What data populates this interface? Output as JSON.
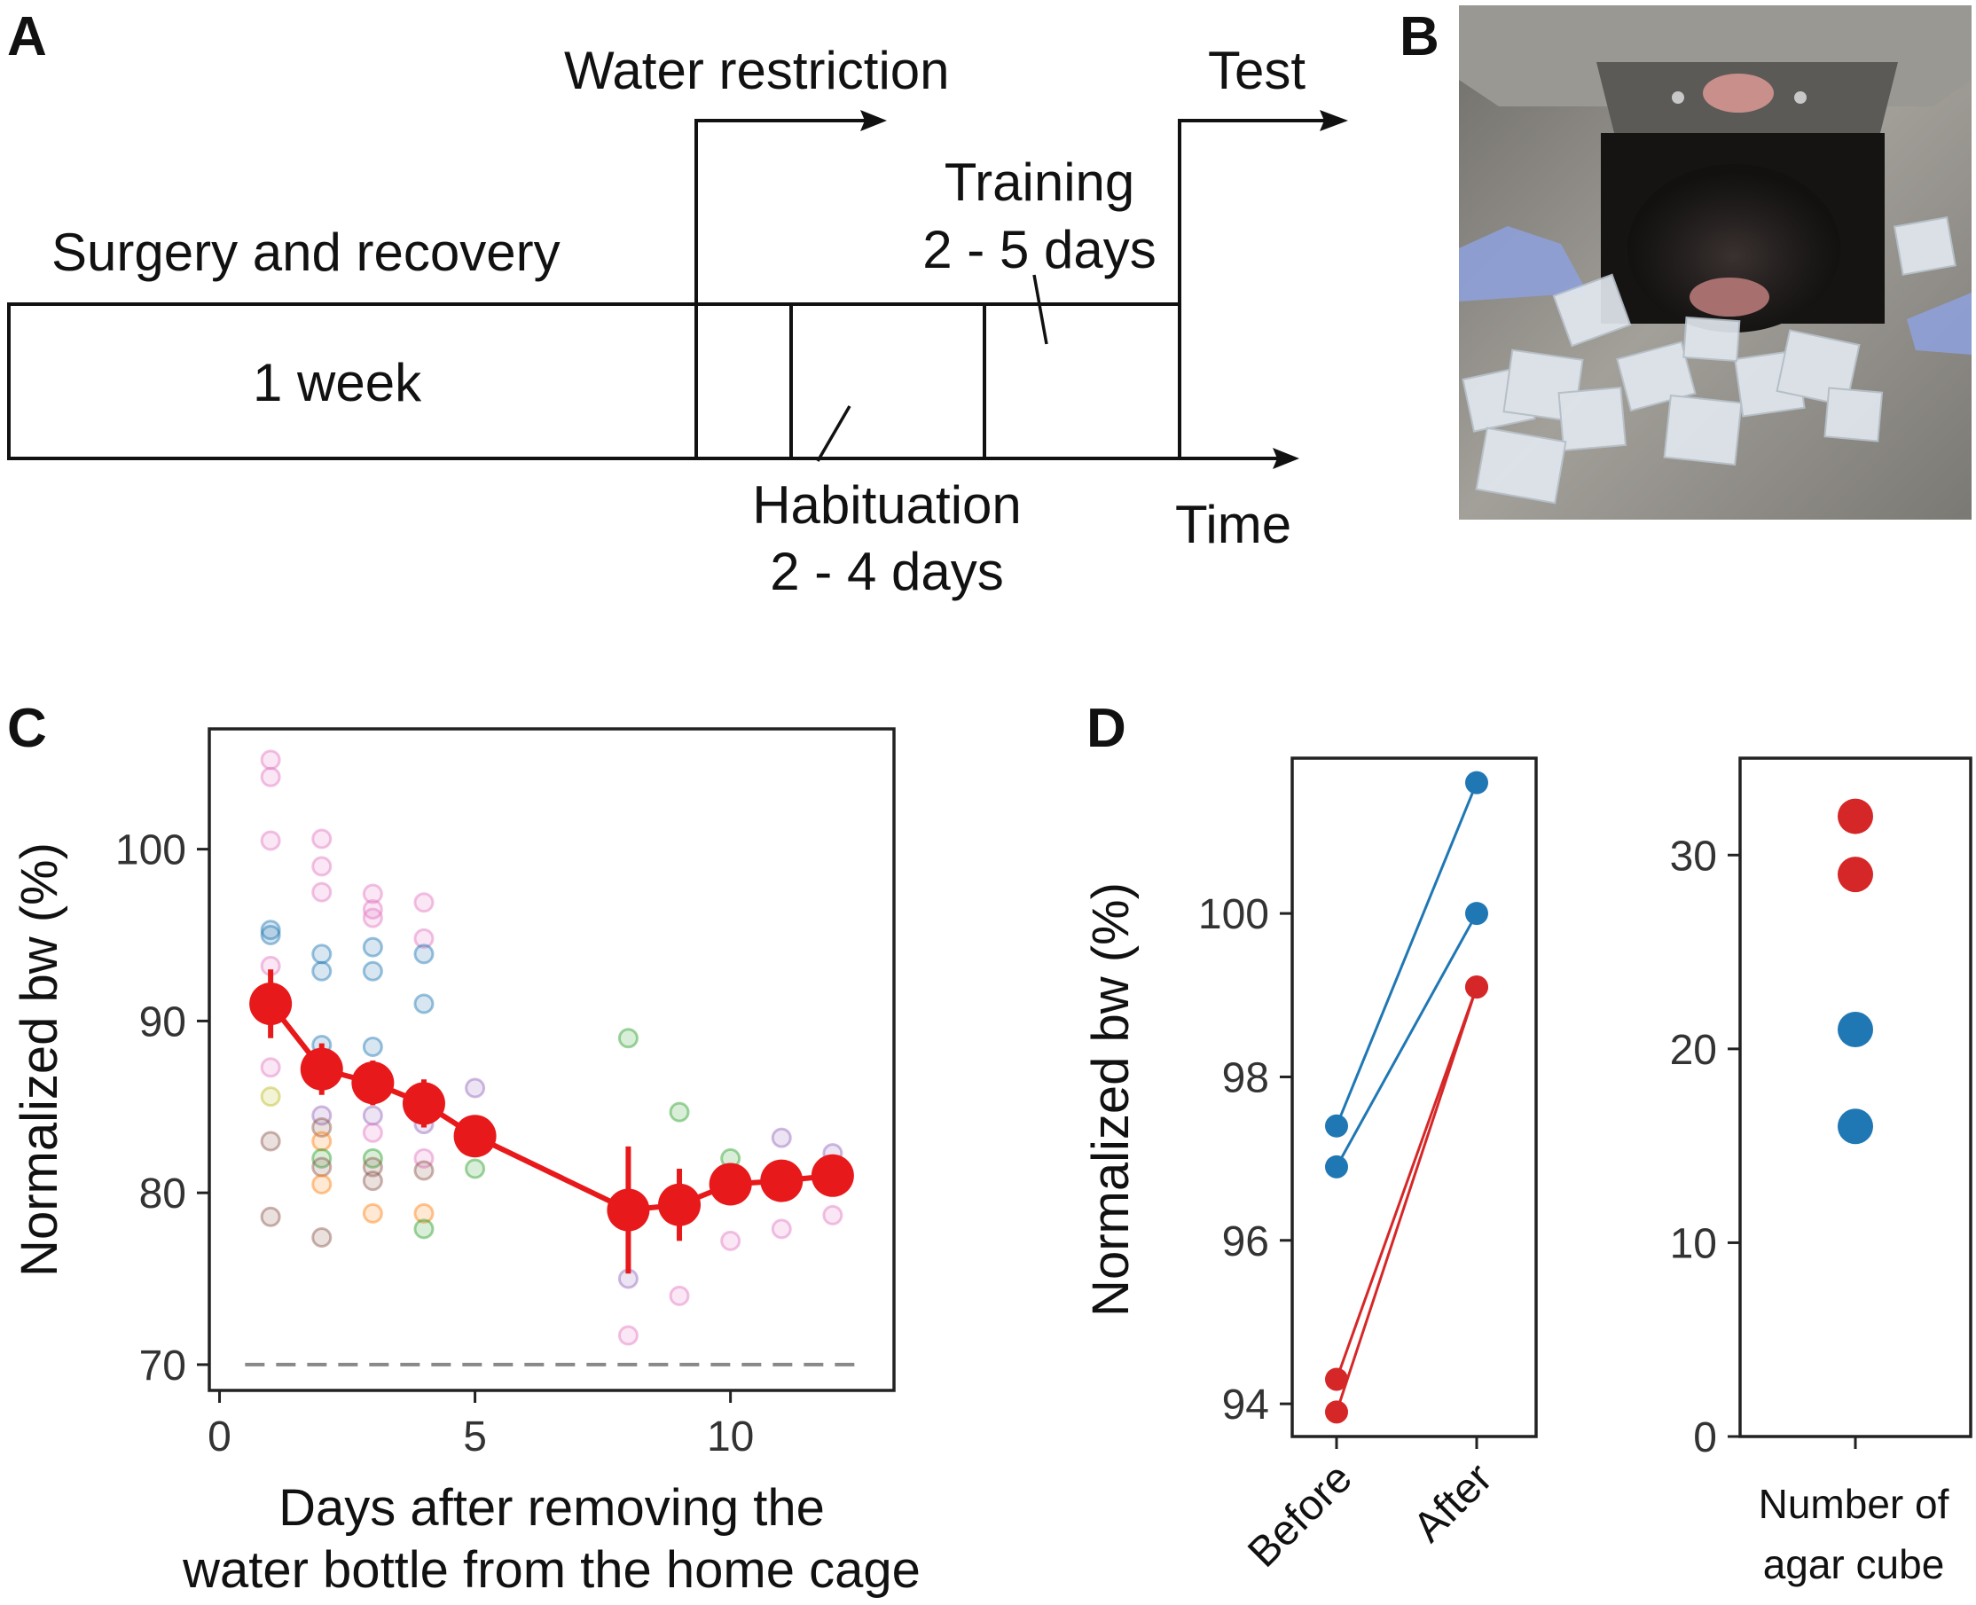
{
  "panels": {
    "a": "A",
    "b": "B",
    "c": "C",
    "d": "D"
  },
  "timeline": {
    "surgery_label": "Surgery and recovery",
    "week_label": "1 week",
    "water_restriction": "Water restriction",
    "test": "Test",
    "training_line1": "Training",
    "training_line2": "2 - 5 days",
    "habituation_line1": "Habituation",
    "habituation_line2": "2 - 4 days",
    "time": "Time"
  },
  "photo": {
    "description_hidden": "",
    "colors": {
      "metal": "#8a8780",
      "dark": "#1c1a18",
      "agar": "#dfe6ee",
      "blue": "#8ea0d8"
    }
  },
  "chart_data": [
    {
      "id": "C",
      "type": "scatter",
      "title": "",
      "xlabel_line1": "Days after removing the",
      "xlabel_line2": "water bottle from the home cage",
      "ylabel": "Normalized bw (%)",
      "xlim": [
        -0.2,
        13.2
      ],
      "ylim": [
        68.5,
        107
      ],
      "xticks": [
        "0",
        "5",
        "10"
      ],
      "yticks": [
        "70",
        "80",
        "90",
        "100"
      ],
      "xtick_values": [
        0,
        5,
        10
      ],
      "ytick_values": [
        70,
        80,
        90,
        100
      ],
      "threshold": 70,
      "mean_series": {
        "name": "mean",
        "color": "#e8191b",
        "x": [
          1,
          2,
          3,
          4,
          5,
          8,
          9,
          10,
          11,
          12
        ],
        "y": [
          91.0,
          87.2,
          86.4,
          85.2,
          83.3,
          79.0,
          79.3,
          80.5,
          80.7,
          81.0
        ],
        "err": [
          2.0,
          1.5,
          1.3,
          1.4,
          0.8,
          3.7,
          2.1,
          0.6,
          0.5,
          0.5
        ]
      },
      "individual_points": [
        {
          "x": 1,
          "y": 105.2,
          "c": "#e377c2"
        },
        {
          "x": 1,
          "y": 104.2,
          "c": "#e377c2"
        },
        {
          "x": 1,
          "y": 100.5,
          "c": "#e377c2"
        },
        {
          "x": 1,
          "y": 95.3,
          "c": "#1f77b4"
        },
        {
          "x": 1,
          "y": 95.0,
          "c": "#1f77b4"
        },
        {
          "x": 1,
          "y": 93.2,
          "c": "#e377c2"
        },
        {
          "x": 1,
          "y": 87.3,
          "c": "#e377c2"
        },
        {
          "x": 1,
          "y": 85.6,
          "c": "#bcbd22"
        },
        {
          "x": 1,
          "y": 83.0,
          "c": "#8c564b"
        },
        {
          "x": 1,
          "y": 78.6,
          "c": "#8c564b"
        },
        {
          "x": 2,
          "y": 100.6,
          "c": "#e377c2"
        },
        {
          "x": 2,
          "y": 99.0,
          "c": "#e377c2"
        },
        {
          "x": 2,
          "y": 97.5,
          "c": "#e377c2"
        },
        {
          "x": 2,
          "y": 93.9,
          "c": "#1f77b4"
        },
        {
          "x": 2,
          "y": 92.9,
          "c": "#1f77b4"
        },
        {
          "x": 2,
          "y": 88.6,
          "c": "#1f77b4"
        },
        {
          "x": 2,
          "y": 84.5,
          "c": "#9467bd"
        },
        {
          "x": 2,
          "y": 83.8,
          "c": "#8c564b"
        },
        {
          "x": 2,
          "y": 83.0,
          "c": "#ff7f0e"
        },
        {
          "x": 2,
          "y": 82.0,
          "c": "#2ca02c"
        },
        {
          "x": 2,
          "y": 81.5,
          "c": "#8c564b"
        },
        {
          "x": 2,
          "y": 80.5,
          "c": "#ff7f0e"
        },
        {
          "x": 2,
          "y": 77.4,
          "c": "#8c564b"
        },
        {
          "x": 3,
          "y": 97.4,
          "c": "#e377c2"
        },
        {
          "x": 3,
          "y": 96.5,
          "c": "#e377c2"
        },
        {
          "x": 3,
          "y": 96.0,
          "c": "#e377c2"
        },
        {
          "x": 3,
          "y": 94.3,
          "c": "#1f77b4"
        },
        {
          "x": 3,
          "y": 92.9,
          "c": "#1f77b4"
        },
        {
          "x": 3,
          "y": 88.5,
          "c": "#1f77b4"
        },
        {
          "x": 3,
          "y": 84.5,
          "c": "#9467bd"
        },
        {
          "x": 3,
          "y": 83.5,
          "c": "#e377c2"
        },
        {
          "x": 3,
          "y": 82.0,
          "c": "#2ca02c"
        },
        {
          "x": 3,
          "y": 81.5,
          "c": "#8c564b"
        },
        {
          "x": 3,
          "y": 80.7,
          "c": "#8c564b"
        },
        {
          "x": 3,
          "y": 78.8,
          "c": "#ff7f0e"
        },
        {
          "x": 4,
          "y": 96.9,
          "c": "#e377c2"
        },
        {
          "x": 4,
          "y": 94.8,
          "c": "#e377c2"
        },
        {
          "x": 4,
          "y": 93.9,
          "c": "#1f77b4"
        },
        {
          "x": 4,
          "y": 91.0,
          "c": "#1f77b4"
        },
        {
          "x": 4,
          "y": 84.0,
          "c": "#9467bd"
        },
        {
          "x": 4,
          "y": 82.0,
          "c": "#e377c2"
        },
        {
          "x": 4,
          "y": 81.3,
          "c": "#8c564b"
        },
        {
          "x": 4,
          "y": 78.8,
          "c": "#ff7f0e"
        },
        {
          "x": 4,
          "y": 77.9,
          "c": "#2ca02c"
        },
        {
          "x": 5,
          "y": 86.1,
          "c": "#9467bd"
        },
        {
          "x": 5,
          "y": 81.4,
          "c": "#2ca02c"
        },
        {
          "x": 8,
          "y": 89.0,
          "c": "#2ca02c"
        },
        {
          "x": 8,
          "y": 75.0,
          "c": "#9467bd"
        },
        {
          "x": 8,
          "y": 71.7,
          "c": "#e377c2"
        },
        {
          "x": 9,
          "y": 84.7,
          "c": "#2ca02c"
        },
        {
          "x": 9,
          "y": 74.0,
          "c": "#e377c2"
        },
        {
          "x": 10,
          "y": 82.0,
          "c": "#2ca02c"
        },
        {
          "x": 10,
          "y": 77.2,
          "c": "#e377c2"
        },
        {
          "x": 11,
          "y": 83.2,
          "c": "#9467bd"
        },
        {
          "x": 11,
          "y": 77.9,
          "c": "#e377c2"
        },
        {
          "x": 12,
          "y": 82.3,
          "c": "#9467bd"
        },
        {
          "x": 12,
          "y": 78.7,
          "c": "#e377c2"
        }
      ]
    },
    {
      "id": "D-left",
      "type": "line",
      "ylabel": "Normalized bw (%)",
      "categories": [
        "Before",
        "After"
      ],
      "ylim": [
        93.6,
        101.9
      ],
      "yticks": [
        "94",
        "96",
        "98",
        "100"
      ],
      "ytick_values": [
        94,
        96,
        98,
        100
      ],
      "series": [
        {
          "name": "blue-1",
          "color": "#1f77b4",
          "values": [
            97.4,
            101.6
          ]
        },
        {
          "name": "blue-2",
          "color": "#1f77b4",
          "values": [
            96.9,
            100.0
          ]
        },
        {
          "name": "red-1",
          "color": "#d62728",
          "values": [
            94.3,
            99.1
          ]
        },
        {
          "name": "red-2",
          "color": "#d62728",
          "values": [
            93.9,
            99.1
          ]
        }
      ]
    },
    {
      "id": "D-right",
      "type": "scatter",
      "categories": [
        "Number of",
        "agar cube"
      ],
      "ylim": [
        0,
        35
      ],
      "yticks": [
        "0",
        "10",
        "20",
        "30"
      ],
      "ytick_values": [
        0,
        10,
        20,
        30
      ],
      "points": [
        {
          "value": 32,
          "color": "#d62728"
        },
        {
          "value": 29,
          "color": "#d62728"
        },
        {
          "value": 21,
          "color": "#1f77b4"
        },
        {
          "value": 16,
          "color": "#1f77b4"
        }
      ]
    }
  ]
}
